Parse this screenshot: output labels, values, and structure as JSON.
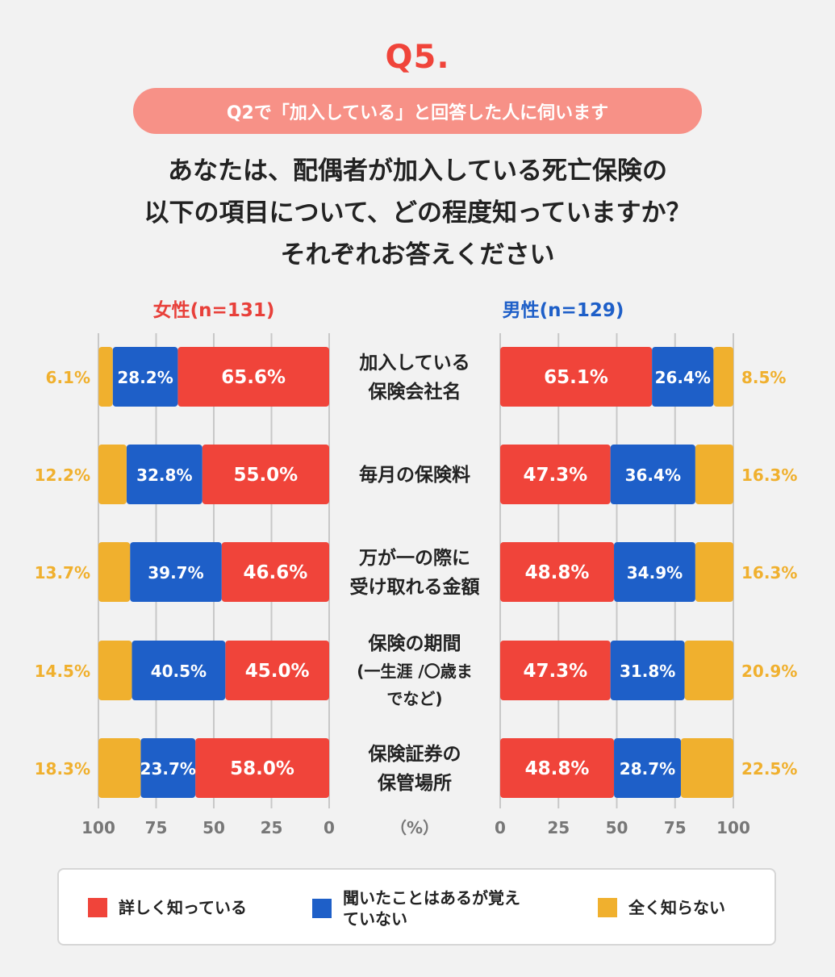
{
  "header": {
    "q_label": "Q5.",
    "pill": "Q2で「加入している」と回答した人に伺います",
    "question_lines": [
      "あなたは、配偶者が加入している死亡保険の",
      "以下の項目について、どの程度知っていますか？",
      "それぞれお答えください"
    ]
  },
  "panels": {
    "female_title": "女性(n=131)",
    "male_title": "男性(n=129)"
  },
  "colors": {
    "detailed": "#f0443a",
    "heard": "#1e5fc8",
    "unknown": "#f0b02e",
    "gridline": "#c8c8c8",
    "tick": "#777777"
  },
  "chart_data": {
    "type": "bar",
    "orientation": "horizontal",
    "stacked": true,
    "unit": "%",
    "xlim": [
      0,
      100
    ],
    "ticks_female": [
      "100",
      "75",
      "50",
      "25",
      "0"
    ],
    "ticks_male": [
      "0",
      "25",
      "50",
      "75",
      "100"
    ],
    "unit_label": "（%）",
    "categories": [
      [
        "加入している",
        "保険会社名"
      ],
      [
        "毎月の保険料"
      ],
      [
        "万が一の際に",
        "受け取れる金額"
      ],
      [
        "保険の期間",
        "(一生涯 /〇歳ま",
        "でなど)"
      ],
      [
        "保険証券の",
        "保管場所"
      ]
    ],
    "series": [
      {
        "name": "詳しく知っている",
        "female": [
          65.6,
          55.0,
          46.6,
          45.0,
          58.0
        ],
        "male": [
          65.1,
          47.3,
          48.8,
          47.3,
          48.8
        ],
        "female_labels": [
          "65.6%",
          "55.0%",
          "46.6%",
          "45.0%",
          "58.0%"
        ],
        "male_labels": [
          "65.1%",
          "47.3%",
          "48.8%",
          "47.3%",
          "48.8%"
        ]
      },
      {
        "name": "聞いたことはあるが覚えていない",
        "female": [
          28.2,
          32.8,
          39.7,
          40.5,
          23.7
        ],
        "male": [
          26.4,
          36.4,
          34.9,
          31.8,
          28.7
        ],
        "female_labels": [
          "28.2%",
          "32.8%",
          "39.7%",
          "40.5%",
          "23.7%"
        ],
        "male_labels": [
          "26.4%",
          "36.4%",
          "34.9%",
          "31.8%",
          "28.7%"
        ]
      },
      {
        "name": "全く知らない",
        "female": [
          6.1,
          12.2,
          13.7,
          14.5,
          18.3
        ],
        "male": [
          8.5,
          16.3,
          16.3,
          20.9,
          22.5
        ],
        "female_labels": [
          "6.1%",
          "12.2%",
          "13.7%",
          "14.5%",
          "18.3%"
        ],
        "male_labels": [
          "8.5%",
          "16.3%",
          "16.3%",
          "20.9%",
          "22.5%"
        ]
      }
    ]
  },
  "legend": [
    {
      "lines": [
        "詳しく知っている"
      ]
    },
    {
      "lines": [
        "聞いたことはあるが覚え",
        "ていない"
      ]
    },
    {
      "lines": [
        "全く知らない"
      ]
    }
  ]
}
